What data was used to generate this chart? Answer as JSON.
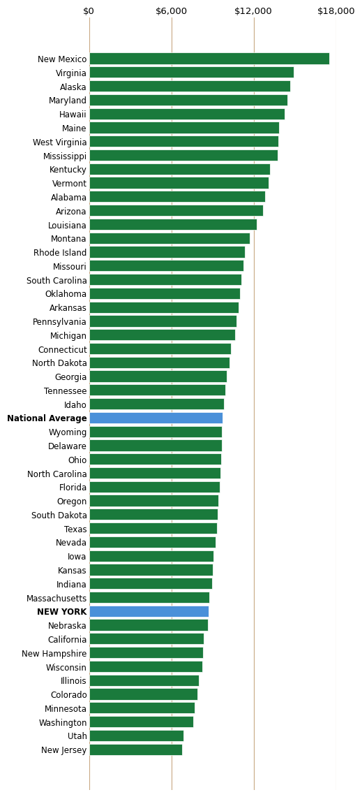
{
  "categories": [
    "New Mexico",
    "Virginia",
    "Alaska",
    "Maryland",
    "Hawaii",
    "Maine",
    "West Virginia",
    "Mississippi",
    "Kentucky",
    "Vermont",
    "Alabama",
    "Arizona",
    "Louisiana",
    "Montana",
    "Rhode Island",
    "Missouri",
    "South Carolina",
    "Oklahoma",
    "Arkansas",
    "Pennsylvania",
    "Michigan",
    "Connecticut",
    "North Dakota",
    "Georgia",
    "Tennessee",
    "Idaho",
    "National Average",
    "Wyoming",
    "Delaware",
    "Ohio",
    "North Carolina",
    "Florida",
    "Oregon",
    "South Dakota",
    "Texas",
    "Nevada",
    "Iowa",
    "Kansas",
    "Indiana",
    "Massachusetts",
    "NEW YORK",
    "Nebraska",
    "California",
    "New Hampshire",
    "Wisconsin",
    "Illinois",
    "Colorado",
    "Minnesota",
    "Washington",
    "Utah",
    "New Jersey"
  ],
  "values": [
    17500,
    14900,
    14650,
    14450,
    14250,
    13850,
    13780,
    13720,
    13200,
    13100,
    12820,
    12700,
    12200,
    11700,
    11350,
    11250,
    11100,
    11000,
    10900,
    10750,
    10650,
    10320,
    10250,
    10020,
    9920,
    9850,
    9750,
    9700,
    9680,
    9620,
    9570,
    9520,
    9420,
    9370,
    9320,
    9220,
    9060,
    9010,
    8960,
    8760,
    8710,
    8660,
    8380,
    8330,
    8280,
    7980,
    7880,
    7680,
    7580,
    6880,
    6780
  ],
  "bar_colors": [
    "#1a7a3c",
    "#1a7a3c",
    "#1a7a3c",
    "#1a7a3c",
    "#1a7a3c",
    "#1a7a3c",
    "#1a7a3c",
    "#1a7a3c",
    "#1a7a3c",
    "#1a7a3c",
    "#1a7a3c",
    "#1a7a3c",
    "#1a7a3c",
    "#1a7a3c",
    "#1a7a3c",
    "#1a7a3c",
    "#1a7a3c",
    "#1a7a3c",
    "#1a7a3c",
    "#1a7a3c",
    "#1a7a3c",
    "#1a7a3c",
    "#1a7a3c",
    "#1a7a3c",
    "#1a7a3c",
    "#1a7a3c",
    "#4a90d9",
    "#1a7a3c",
    "#1a7a3c",
    "#1a7a3c",
    "#1a7a3c",
    "#1a7a3c",
    "#1a7a3c",
    "#1a7a3c",
    "#1a7a3c",
    "#1a7a3c",
    "#1a7a3c",
    "#1a7a3c",
    "#1a7a3c",
    "#1a7a3c",
    "#4a90d9",
    "#1a7a3c",
    "#1a7a3c",
    "#1a7a3c",
    "#1a7a3c",
    "#1a7a3c",
    "#1a7a3c",
    "#1a7a3c",
    "#1a7a3c",
    "#1a7a3c",
    "#1a7a3c"
  ],
  "bold_labels": [
    "National Average",
    "NEW YORK"
  ],
  "xlim": [
    0,
    18000
  ],
  "xticks": [
    0,
    6000,
    12000,
    18000
  ],
  "xtick_labels": [
    "$0",
    "$6,000",
    "$12,000",
    "$18,000"
  ],
  "background_color": "#ffffff",
  "bar_height": 0.82,
  "grid_color": "#c8a882",
  "label_fontsize": 8.5,
  "tick_fontsize": 9.5
}
